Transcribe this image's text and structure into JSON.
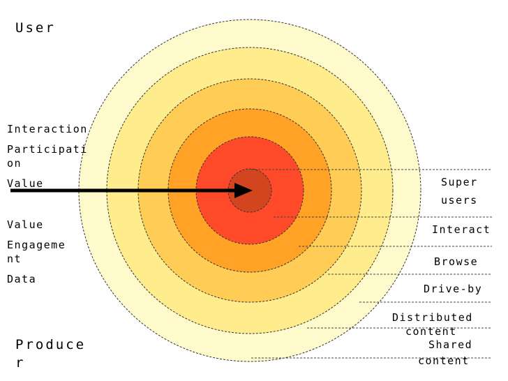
{
  "corner_labels": {
    "top": "User",
    "bottom_line1": "Produce",
    "bottom_line2": "r"
  },
  "left_labels": {
    "interaction": "Interaction",
    "participation_line1": "Participati",
    "participation_line2": "on",
    "value_arrow": "Value",
    "value": "Value",
    "engagement_line1": "Engageme",
    "engagement_line2": "nt",
    "data": "Data"
  },
  "rings": [
    {
      "label_lines": [
        "Super",
        "users"
      ],
      "fill": "#d2451e"
    },
    {
      "label_lines": [
        "Interact"
      ],
      "fill": "#ff4a2a"
    },
    {
      "label_lines": [
        "Browse"
      ],
      "fill": "#ffa226"
    },
    {
      "label_lines": [
        "Drive-by"
      ],
      "fill": "#ffcc55"
    },
    {
      "label_lines": [
        "Distributed",
        "content"
      ],
      "fill": "#ffec8c"
    },
    {
      "label_lines": [
        "Shared",
        "content"
      ],
      "fill": "#fffacb"
    }
  ],
  "colors": {
    "outline": "#333333",
    "arrow": "#000000"
  }
}
